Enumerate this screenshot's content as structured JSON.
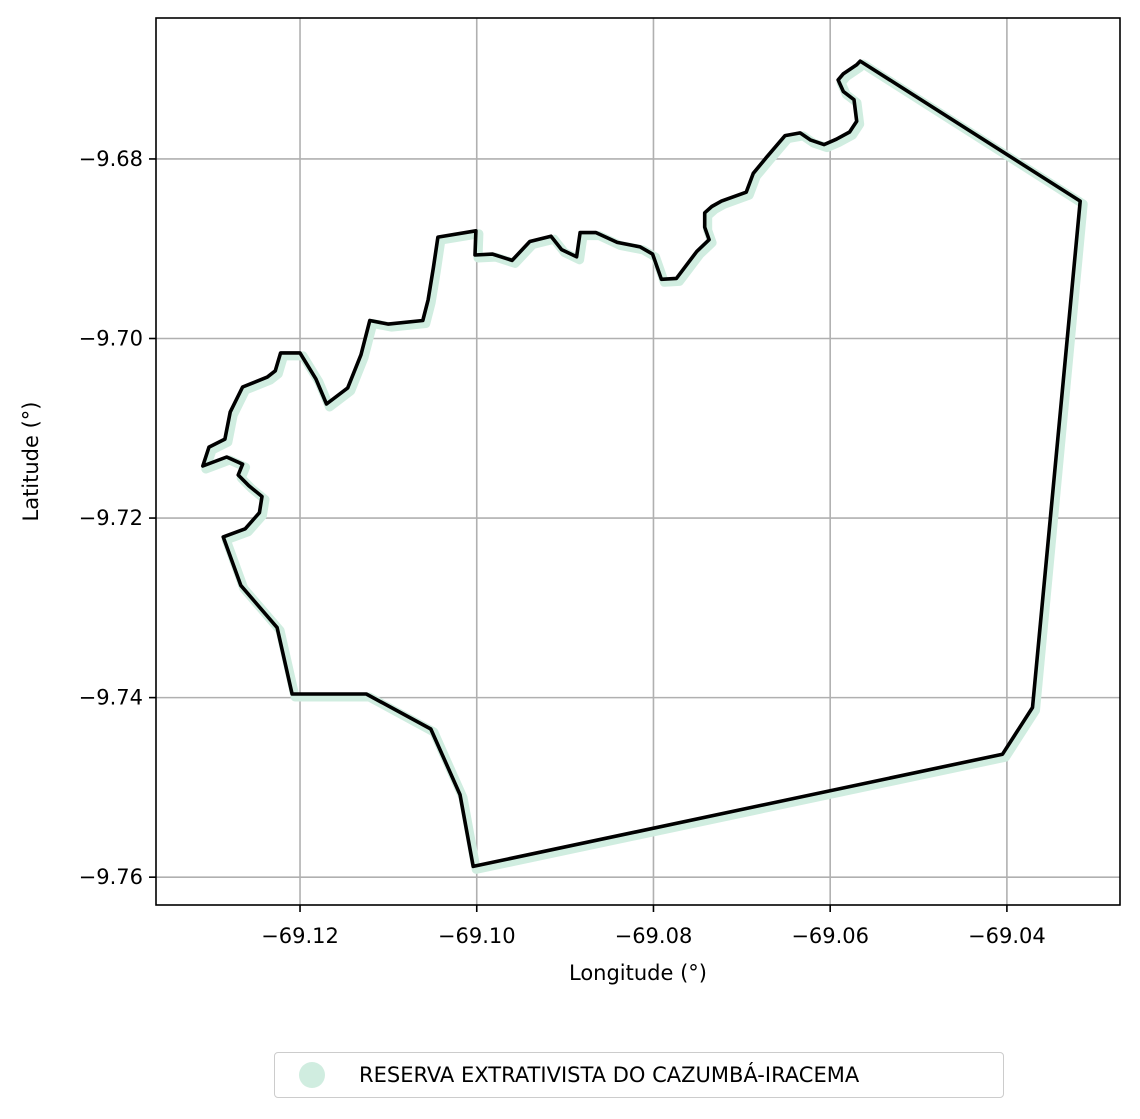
{
  "chart_data": {
    "type": "map",
    "xlabel": "Longitude (°)",
    "ylabel": "Latitude (°)",
    "xlim": [
      -69.1363,
      -69.0272
    ],
    "ylim": [
      -9.7631,
      -9.6643
    ],
    "xticks": [
      -69.12,
      -69.1,
      -69.08,
      -69.06,
      -69.04
    ],
    "xtick_labels": [
      "−69.12",
      "−69.10",
      "−69.08",
      "−69.06",
      "−69.04"
    ],
    "yticks": [
      -9.68,
      -9.7,
      -9.72,
      -9.74,
      -9.76
    ],
    "ytick_labels": [
      "−9.68",
      "−9.70",
      "−9.72",
      "−9.74",
      "−9.76"
    ],
    "grid": true,
    "colors": {
      "fill": "#d0ede0",
      "boundary": "#000000",
      "grid": "#b0b0b0"
    },
    "legend": {
      "placement": "bottom-center, below axes",
      "entries": [
        {
          "label": "RESERVA EXTRATIVISTA DO CAZUMBÁ-IRACEMA",
          "color": "#d0ede0"
        }
      ]
    },
    "boundary_lon_lat": [
      [
        -69.0566,
        -9.6691
      ],
      [
        -69.0317,
        -9.6847
      ],
      [
        -69.0371,
        -9.7411
      ],
      [
        -69.0405,
        -9.7463
      ],
      [
        -69.1004,
        -9.7588
      ],
      [
        -69.1019,
        -9.7508
      ],
      [
        -69.1052,
        -9.7435
      ],
      [
        -69.1125,
        -9.7396
      ],
      [
        -69.1209,
        -9.7396
      ],
      [
        -69.1226,
        -9.7322
      ],
      [
        -69.1267,
        -9.7275
      ],
      [
        -69.1287,
        -9.7221
      ],
      [
        -69.1262,
        -9.7212
      ],
      [
        -69.1246,
        -9.7194
      ],
      [
        -69.1243,
        -9.7176
      ],
      [
        -69.1258,
        -9.7164
      ],
      [
        -69.127,
        -9.7152
      ],
      [
        -69.1265,
        -9.714
      ],
      [
        -69.1283,
        -9.7132
      ],
      [
        -69.131,
        -9.7142
      ],
      [
        -69.1303,
        -9.7121
      ],
      [
        -69.1285,
        -9.7112
      ],
      [
        -69.1279,
        -9.7082
      ],
      [
        -69.1265,
        -9.7054
      ],
      [
        -69.1237,
        -9.7043
      ],
      [
        -69.1228,
        -9.7036
      ],
      [
        -69.1222,
        -9.7016
      ],
      [
        -69.12,
        -9.7016
      ],
      [
        -69.1182,
        -9.7045
      ],
      [
        -69.117,
        -9.7073
      ],
      [
        -69.1146,
        -9.7055
      ],
      [
        -69.1131,
        -9.7018
      ],
      [
        -69.1121,
        -9.698
      ],
      [
        -69.11,
        -9.6984
      ],
      [
        -69.1061,
        -9.698
      ],
      [
        -69.1055,
        -9.6957
      ],
      [
        -69.1049,
        -9.6921
      ],
      [
        -69.1044,
        -9.6887
      ],
      [
        -69.1001,
        -9.688
      ],
      [
        -69.1002,
        -9.6907
      ],
      [
        -69.0982,
        -9.6906
      ],
      [
        -69.096,
        -9.6913
      ],
      [
        -69.094,
        -9.6892
      ],
      [
        -69.0916,
        -9.6886
      ],
      [
        -69.0904,
        -9.6901
      ],
      [
        -69.0887,
        -9.6909
      ],
      [
        -69.0883,
        -9.6882
      ],
      [
        -69.0865,
        -9.6882
      ],
      [
        -69.0841,
        -9.6893
      ],
      [
        -69.0815,
        -9.6898
      ],
      [
        -69.0801,
        -9.6906
      ],
      [
        -69.0791,
        -9.6934
      ],
      [
        -69.0774,
        -9.6933
      ],
      [
        -69.0751,
        -9.6903
      ],
      [
        -69.0737,
        -9.689
      ],
      [
        -69.0742,
        -9.6876
      ],
      [
        -69.0742,
        -9.686
      ],
      [
        -69.0734,
        -9.6853
      ],
      [
        -69.0723,
        -9.6847
      ],
      [
        -69.0695,
        -9.6837
      ],
      [
        -69.0687,
        -9.6816
      ],
      [
        -69.0672,
        -9.6798
      ],
      [
        -69.0651,
        -9.6774
      ],
      [
        -69.0634,
        -9.6771
      ],
      [
        -69.0622,
        -9.6779
      ],
      [
        -69.0607,
        -9.6784
      ],
      [
        -69.0593,
        -9.6778
      ],
      [
        -69.0578,
        -9.677
      ],
      [
        -69.057,
        -9.6758
      ],
      [
        -69.0573,
        -9.6734
      ],
      [
        -69.0585,
        -9.6725
      ],
      [
        -69.0591,
        -9.6712
      ],
      [
        -69.0585,
        -9.6705
      ],
      [
        -69.057,
        -9.6695
      ],
      [
        -69.0566,
        -9.6691
      ]
    ]
  }
}
